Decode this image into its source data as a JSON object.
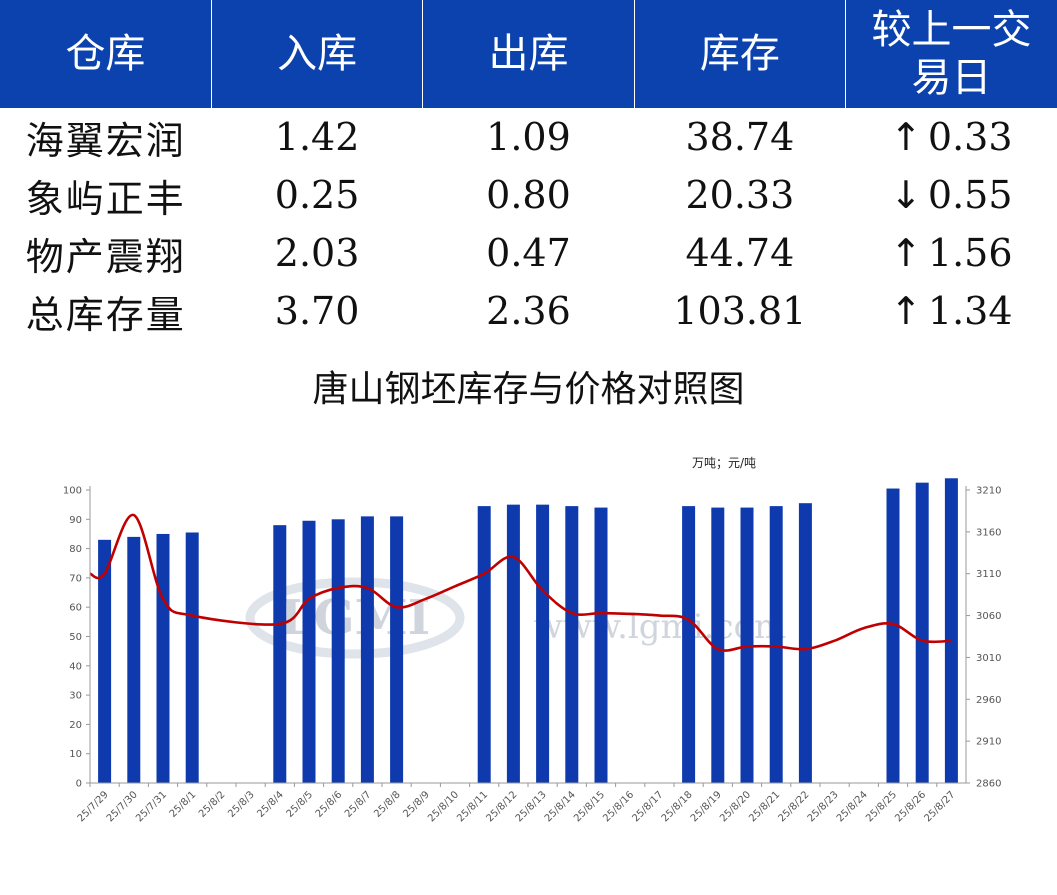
{
  "table": {
    "headers": [
      "仓库",
      "入库",
      "出库",
      "库存",
      "较上一交易日"
    ],
    "rows": [
      {
        "name": "海翼宏润",
        "in": "1.42",
        "out": "1.09",
        "stock": "38.74",
        "dir": "up",
        "change": "0.33"
      },
      {
        "name": "象屿正丰",
        "in": "0.25",
        "out": "0.80",
        "stock": "20.33",
        "dir": "down",
        "change": "0.55"
      },
      {
        "name": "物产震翔",
        "in": "2.03",
        "out": "0.47",
        "stock": "44.74",
        "dir": "up",
        "change": "1.56"
      },
      {
        "name": "总库存量",
        "in": "3.70",
        "out": "2.36",
        "stock": "103.81",
        "dir": "up",
        "change": "1.34"
      }
    ],
    "colors": {
      "header_bg": "#0c42ad",
      "up": "#e00000",
      "down": "#0a7a0a"
    }
  },
  "watermark": {
    "logo": "LGMI",
    "url": "www.lgmi.com"
  },
  "chart_data": {
    "type": "bar+line",
    "title": "唐山钢坯库存与价格对照图",
    "unit_label": "万吨；元/吨",
    "categories": [
      "25/7/29",
      "25/7/30",
      "25/7/31",
      "25/8/1",
      "25/8/2",
      "25/8/3",
      "25/8/4",
      "25/8/5",
      "25/8/6",
      "25/8/7",
      "25/8/8",
      "25/8/9",
      "25/8/10",
      "25/8/11",
      "25/8/12",
      "25/8/13",
      "25/8/14",
      "25/8/15",
      "25/8/16",
      "25/8/17",
      "25/8/18",
      "25/8/19",
      "25/8/20",
      "25/8/21",
      "25/8/22",
      "25/8/23",
      "25/8/24",
      "25/8/25",
      "25/8/26",
      "25/8/27"
    ],
    "series": [
      {
        "type": "bar",
        "axis": "left",
        "color": "#0e3aae",
        "values": [
          83,
          84,
          85,
          85.5,
          null,
          null,
          88,
          89.5,
          90,
          91,
          91,
          null,
          null,
          94.5,
          95,
          95,
          94.5,
          94,
          null,
          null,
          94.5,
          94,
          94,
          94.5,
          95.5,
          null,
          null,
          100.5,
          102.5,
          104
        ]
      },
      {
        "type": "line",
        "axis": "right",
        "color": "#c00000",
        "values": [
          3110,
          3180,
          3080,
          3060,
          null,
          null,
          3050,
          3080,
          3093,
          3093,
          3070,
          3080,
          3095,
          3110,
          3130,
          3090,
          3063,
          3063,
          3062,
          3060,
          3055,
          3020,
          3023,
          3023,
          3020,
          3030,
          3045,
          3050,
          3030,
          3030
        ]
      }
    ],
    "ylim_left": [
      0,
      100
    ],
    "yticks_left": [
      "0",
      "10",
      "20",
      "30",
      "40",
      "50",
      "60",
      "70",
      "80",
      "90",
      "100"
    ],
    "ylim_right": [
      2860,
      3210
    ],
    "yticks_right": [
      "2860",
      "2910",
      "2960",
      "3010",
      "3060",
      "3110",
      "3160",
      "3210"
    ]
  }
}
